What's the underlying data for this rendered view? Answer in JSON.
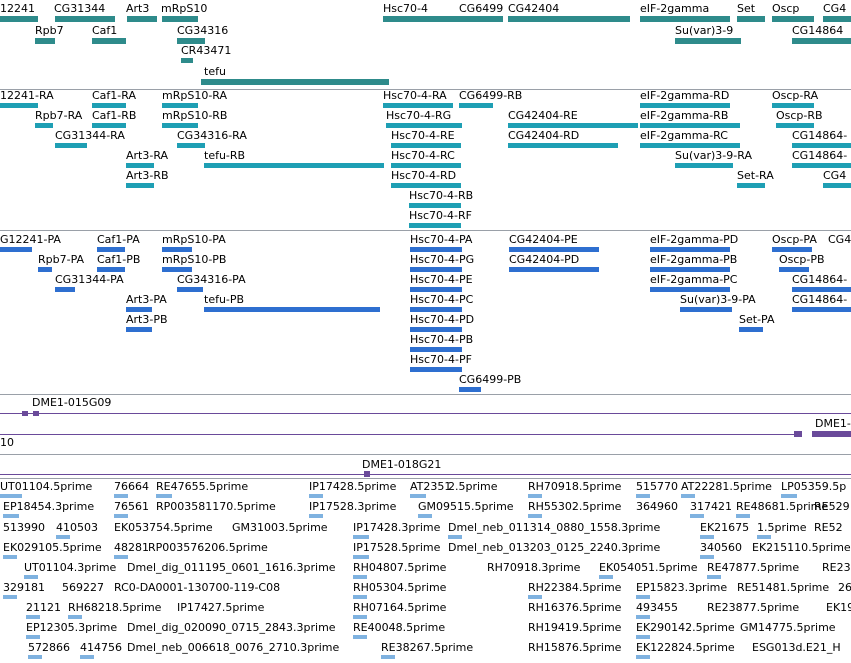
{
  "colors": {
    "gene": "#2e8b8b",
    "transcript": "#1e9fb4",
    "protein": "#2e6fd0",
    "est": "#7fb2e0",
    "clone": "#6a4a9a",
    "separator": "#9aa0a8"
  },
  "genes": [
    "12241",
    "CG31344",
    "Art3",
    "mRpS10",
    "Hsc70-4",
    "CG6499",
    "CG42404",
    "eIF-2gamma",
    "Set",
    "Oscp",
    "CG4",
    "Rpb7",
    "Caf1",
    "CG34316",
    "Su(var)3-9",
    "CG14864",
    "CR43471",
    "tefu"
  ],
  "transcripts": [
    "12241-RA",
    "Caf1-RA",
    "mRpS10-RA",
    "Hsc70-4-RA",
    "CG6499-RB",
    "eIF-2gamma-RD",
    "Oscp-RA",
    "Rpb7-RA",
    "Caf1-RB",
    "mRpS10-RB",
    "Hsc70-4-RG",
    "CG42404-RE",
    "eIF-2gamma-RB",
    "Oscp-RB",
    "CG31344-RA",
    "CG34316-RA",
    "Hsc70-4-RE",
    "CG42404-RD",
    "eIF-2gamma-RC",
    "CG14864-",
    "Art3-RA",
    "tefu-RB",
    "Hsc70-4-RC",
    "Su(var)3-9-RA",
    "CG14864-",
    "Art3-RB",
    "Hsc70-4-RD",
    "Set-RA",
    "CG4",
    "Hsc70-4-RB",
    "Hsc70-4-RF"
  ],
  "proteins": [
    "G12241-PA",
    "Caf1-PA",
    "mRpS10-PA",
    "Hsc70-4-PA",
    "CG42404-PE",
    "eIF-2gamma-PD",
    "Oscp-PA",
    "CG4",
    "Rpb7-PA",
    "Caf1-PB",
    "mRpS10-PB",
    "Hsc70-4-PG",
    "CG42404-PD",
    "eIF-2gamma-PB",
    "Oscp-PB",
    "CG31344-PA",
    "CG34316-PA",
    "Hsc70-4-PE",
    "eIF-2gamma-PC",
    "CG14864-",
    "Art3-PA",
    "tefu-PB",
    "Hsc70-4-PC",
    "Su(var)3-9-PA",
    "CG14864-",
    "Art3-PB",
    "Hsc70-4-PD",
    "Set-PA",
    "Hsc70-4-PB",
    "Hsc70-4-PF",
    "CG6499-PB"
  ],
  "clones": [
    "DME1-015G09",
    "10",
    "DME1-",
    "DME1-018G21"
  ],
  "ests": [
    "UT01104.5prime",
    "76664",
    "RE47655.5prime",
    "IP17428.5prime",
    "AT2351",
    "2.5prime",
    "RH70918.5prime",
    "515770",
    "AT22281.5prime",
    "LP05359.5p",
    "EP18454.3prime",
    "76561",
    "RP003581170.5prime",
    "IP17528.3prime",
    "GM09515.5prime",
    "RH55302.5prime",
    "364960",
    "317421",
    "RE48681.5prime",
    "RE529",
    "513990",
    "410503",
    "EK053754.5prime",
    "GM31003.5prime",
    "IP17428.3prime",
    "Dmel_neb_011314_0880_1558.3prime",
    "EK21675",
    "1.5prime",
    "RE52",
    "EK029105.5prime",
    "48281",
    "RP003576206.5prime",
    "IP17528.5prime",
    "Dmel_neb_013203_0125_2240.3prime",
    "340560",
    "EK215110.5prime",
    "UT01104.3prime",
    "Dmel_dig_011195_0601_1616.3prime",
    "RH04807.5prime",
    "RH70918.3prime",
    "EK05405",
    "1.5prime",
    "RE47877.5prime",
    "RE23",
    "329181",
    "569227",
    "RC0-DA0001-130700-119-C08",
    "RH05304.5prime",
    "RH22384.5prime",
    "EP15823.3prime",
    "RE51481.5prime",
    "26",
    "21121",
    "RH68218.5prime",
    "IP17427.5prime",
    "RH07164.5prime",
    "RH16376.5prime",
    "493455",
    "RE23877.5prime",
    "EK19",
    "EP12305.3prime",
    "Dmel_dig_020090_0715_2843.3prime",
    "RE40048.5prime",
    "RH19419.5prime",
    "EK290142.5prime",
    "GM14775.5prime",
    "572866",
    "414756",
    "Dmel_neb_006618_0076_2710.3prime",
    "RE38267.5prime",
    "RH15876.5prime",
    "EK122824.5prime",
    "ESG013d.E21_H"
  ]
}
